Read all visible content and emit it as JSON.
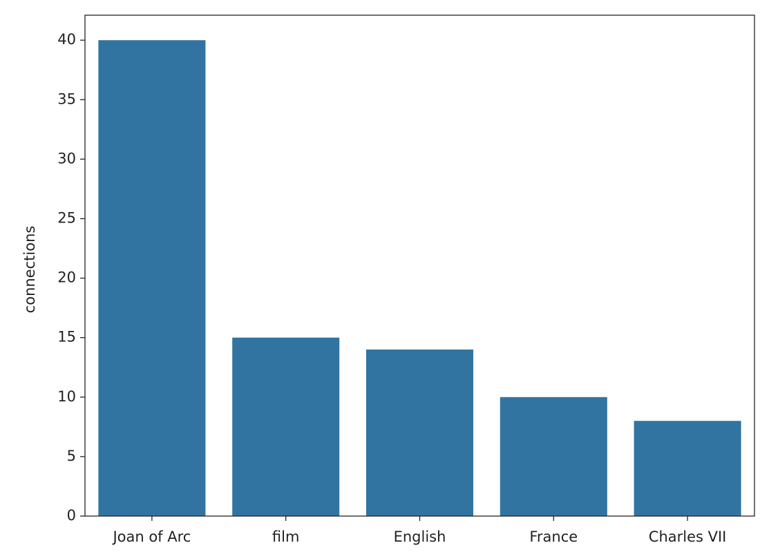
{
  "chart_data": {
    "type": "bar",
    "ylabel": "connections",
    "categories": [
      "Joan of Arc",
      "film",
      "English",
      "France",
      "Charles VII"
    ],
    "values": [
      40,
      15,
      14,
      10,
      8
    ],
    "color": "#3274a1",
    "ylim": [
      0,
      42.1
    ],
    "yticks": [
      0,
      5,
      10,
      15,
      20,
      25,
      30,
      35,
      40
    ],
    "grid": false
  }
}
